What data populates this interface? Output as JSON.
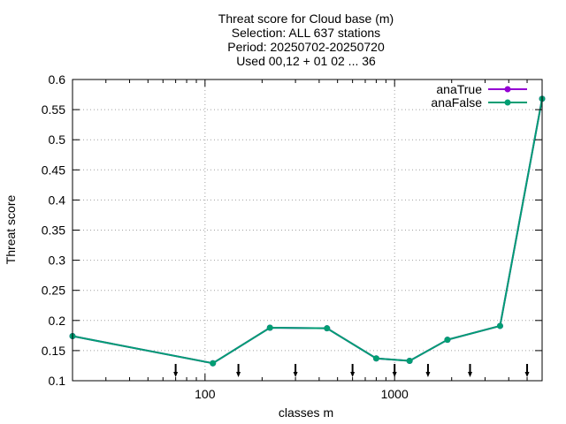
{
  "chart_data": {
    "type": "line",
    "title_lines": [
      "Threat score  for Cloud base (m)",
      "Selection: ALL    637 stations",
      "Period: 20250702-20250720",
      "Used 00,12 + 01 02 ... 36"
    ],
    "xlabel": "classes m",
    "ylabel": "Threat score",
    "x_scale": "log",
    "xlim": [
      20,
      6000
    ],
    "ylim": [
      0.1,
      0.6
    ],
    "x_ticks": [
      100,
      1000
    ],
    "x_tick_labels": [
      "100",
      "1000"
    ],
    "y_ticks": [
      0.1,
      0.15,
      0.2,
      0.25,
      0.3,
      0.35,
      0.4,
      0.45,
      0.5,
      0.55,
      0.6
    ],
    "y_tick_labels": [
      "0.1",
      "0.15",
      "0.2",
      "0.25",
      "0.3",
      "0.35",
      "0.4",
      "0.45",
      "0.5",
      "0.55",
      "0.6"
    ],
    "grid": true,
    "legend_position": "top-right",
    "class_markers_x": [
      70,
      150,
      300,
      600,
      1000,
      1500,
      2500,
      5000
    ],
    "x": [
      20,
      110,
      220,
      440,
      800,
      1200,
      1900,
      3600,
      6000
    ],
    "series": [
      {
        "name": "anaTrue",
        "color": "#9400d3",
        "values": [
          0.174,
          0.129,
          0.188,
          0.187,
          0.137,
          0.133,
          0.168,
          0.191,
          0.568
        ]
      },
      {
        "name": "anaFalse",
        "color": "#009e73",
        "values": [
          0.174,
          0.129,
          0.188,
          0.187,
          0.137,
          0.133,
          0.168,
          0.191,
          0.568
        ]
      }
    ]
  }
}
